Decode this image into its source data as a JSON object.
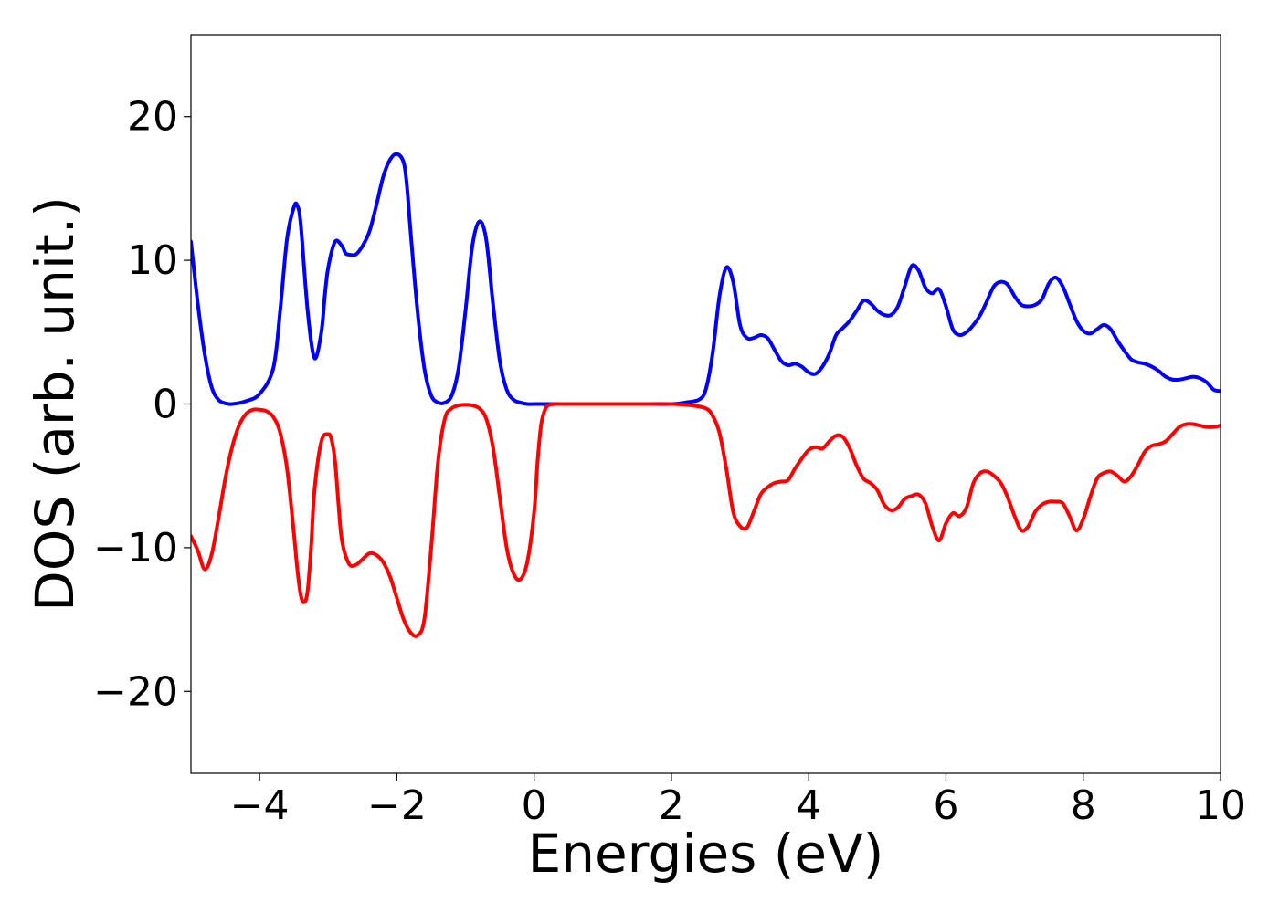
{
  "chart_data": {
    "type": "line",
    "title": "",
    "xlabel": "Energies (eV)",
    "ylabel": "DOS (arb. unit.)",
    "xlim": [
      -5,
      10
    ],
    "ylim": [
      -25.7,
      25.7
    ],
    "xticks": [
      -4,
      -2,
      0,
      2,
      4,
      6,
      8,
      10
    ],
    "yticks": [
      -20,
      -10,
      0,
      10,
      20
    ],
    "xtick_labels": [
      "−4",
      "−2",
      "0",
      "2",
      "4",
      "6",
      "8",
      "10"
    ],
    "ytick_labels": [
      "−20",
      "−10",
      "0",
      "10",
      "20"
    ],
    "grid": false,
    "legend": false,
    "series": [
      {
        "color": "#0000ff",
        "x": [
          -5.0,
          -4.9,
          -4.8,
          -4.7,
          -4.6,
          -4.5,
          -4.4,
          -4.2,
          -4.0,
          -3.8,
          -3.7,
          -3.6,
          -3.5,
          -3.45,
          -3.4,
          -3.3,
          -3.2,
          -3.1,
          -3.05,
          -3.0,
          -2.9,
          -2.8,
          -2.75,
          -2.7,
          -2.6,
          -2.5,
          -2.4,
          -2.3,
          -2.2,
          -2.1,
          -2.0,
          -1.9,
          -1.85,
          -1.8,
          -1.7,
          -1.6,
          -1.5,
          -1.4,
          -1.3,
          -1.2,
          -1.1,
          -1.0,
          -0.9,
          -0.8,
          -0.7,
          -0.6,
          -0.5,
          -0.4,
          -0.3,
          -0.2,
          -0.1,
          0.0,
          0.2,
          0.5,
          1.0,
          1.5,
          2.0,
          2.2,
          2.4,
          2.5,
          2.6,
          2.7,
          2.8,
          2.9,
          3.0,
          3.1,
          3.2,
          3.3,
          3.4,
          3.5,
          3.6,
          3.7,
          3.8,
          3.9,
          4.0,
          4.1,
          4.2,
          4.3,
          4.4,
          4.5,
          4.6,
          4.7,
          4.8,
          4.9,
          5.0,
          5.1,
          5.2,
          5.3,
          5.4,
          5.5,
          5.6,
          5.7,
          5.8,
          5.9,
          6.0,
          6.1,
          6.2,
          6.3,
          6.4,
          6.5,
          6.6,
          6.7,
          6.8,
          6.9,
          7.0,
          7.1,
          7.2,
          7.3,
          7.4,
          7.5,
          7.6,
          7.7,
          7.8,
          7.9,
          8.0,
          8.1,
          8.2,
          8.3,
          8.4,
          8.5,
          8.6,
          8.7,
          8.8,
          8.9,
          9.0,
          9.1,
          9.2,
          9.3,
          9.4,
          9.5,
          9.6,
          9.7,
          9.8,
          9.9,
          10.0
        ],
        "y": [
          11.3,
          7.0,
          3.5,
          1.2,
          0.3,
          0.05,
          0.0,
          0.2,
          0.7,
          2.5,
          6.5,
          11.5,
          13.7,
          13.8,
          12.5,
          6.5,
          3.2,
          5.0,
          7.5,
          9.5,
          11.3,
          11.0,
          10.5,
          10.4,
          10.4,
          11.0,
          12.0,
          13.8,
          15.8,
          17.0,
          17.4,
          16.8,
          15.0,
          12.0,
          6.5,
          2.5,
          0.6,
          0.1,
          0.1,
          0.6,
          2.5,
          6.5,
          11.0,
          12.7,
          11.5,
          7.0,
          3.0,
          1.0,
          0.3,
          0.1,
          0.0,
          0.0,
          0.0,
          0.0,
          0.0,
          0.0,
          0.0,
          0.1,
          0.3,
          1.0,
          3.5,
          7.5,
          9.5,
          8.5,
          5.5,
          4.6,
          4.6,
          4.8,
          4.6,
          3.8,
          3.0,
          2.7,
          2.8,
          2.6,
          2.2,
          2.1,
          2.6,
          3.5,
          4.8,
          5.3,
          5.8,
          6.5,
          7.2,
          7.0,
          6.5,
          6.2,
          6.2,
          6.8,
          8.2,
          9.6,
          9.3,
          8.1,
          7.7,
          8.0,
          6.8,
          5.2,
          4.8,
          5.0,
          5.5,
          6.2,
          7.2,
          8.2,
          8.5,
          8.3,
          7.5,
          6.9,
          6.8,
          6.9,
          7.3,
          8.4,
          8.8,
          8.2,
          7.0,
          5.8,
          5.1,
          4.9,
          5.2,
          5.5,
          5.2,
          4.4,
          3.7,
          3.1,
          2.9,
          2.8,
          2.6,
          2.3,
          1.9,
          1.7,
          1.7,
          1.8,
          1.9,
          1.8,
          1.5,
          1.0,
          0.9
        ]
      },
      {
        "color": "#ff0000",
        "x": [
          -5.0,
          -4.9,
          -4.8,
          -4.7,
          -4.6,
          -4.5,
          -4.4,
          -4.3,
          -4.2,
          -4.1,
          -4.0,
          -3.9,
          -3.8,
          -3.7,
          -3.6,
          -3.5,
          -3.45,
          -3.4,
          -3.35,
          -3.3,
          -3.25,
          -3.2,
          -3.1,
          -3.0,
          -2.95,
          -2.9,
          -2.85,
          -2.8,
          -2.7,
          -2.6,
          -2.5,
          -2.4,
          -2.3,
          -2.2,
          -2.1,
          -2.0,
          -1.9,
          -1.8,
          -1.7,
          -1.6,
          -1.5,
          -1.4,
          -1.3,
          -1.2,
          -1.1,
          -1.0,
          -0.9,
          -0.8,
          -0.7,
          -0.6,
          -0.5,
          -0.4,
          -0.3,
          -0.2,
          -0.1,
          0.0,
          0.05,
          0.1,
          0.15,
          0.2,
          0.3,
          0.4,
          0.5,
          0.6,
          0.8,
          1.0,
          1.5,
          2.0,
          2.3,
          2.5,
          2.6,
          2.7,
          2.8,
          2.9,
          3.0,
          3.1,
          3.2,
          3.3,
          3.4,
          3.5,
          3.6,
          3.7,
          3.8,
          3.9,
          4.0,
          4.1,
          4.2,
          4.3,
          4.4,
          4.5,
          4.6,
          4.7,
          4.8,
          4.9,
          5.0,
          5.1,
          5.2,
          5.3,
          5.4,
          5.5,
          5.6,
          5.7,
          5.8,
          5.9,
          6.0,
          6.1,
          6.2,
          6.3,
          6.4,
          6.5,
          6.6,
          6.7,
          6.8,
          6.9,
          7.0,
          7.1,
          7.2,
          7.3,
          7.4,
          7.5,
          7.6,
          7.7,
          7.8,
          7.9,
          8.0,
          8.1,
          8.2,
          8.3,
          8.4,
          8.5,
          8.6,
          8.7,
          8.8,
          8.9,
          9.0,
          9.1,
          9.2,
          9.3,
          9.4,
          9.5,
          9.6,
          9.7,
          9.8,
          9.9,
          10.0
        ],
        "y": [
          -9.2,
          -10.2,
          -11.5,
          -10.5,
          -8.0,
          -5.2,
          -3.0,
          -1.5,
          -0.7,
          -0.4,
          -0.4,
          -0.5,
          -0.9,
          -2.0,
          -4.5,
          -9.0,
          -11.5,
          -13.3,
          -13.8,
          -13.0,
          -10.0,
          -6.0,
          -2.6,
          -2.1,
          -2.5,
          -4.0,
          -7.0,
          -9.5,
          -11.1,
          -11.2,
          -10.8,
          -10.4,
          -10.5,
          -11.0,
          -12.0,
          -13.5,
          -15.0,
          -15.9,
          -16.1,
          -15.0,
          -10.0,
          -4.0,
          -1.0,
          -0.3,
          -0.1,
          -0.05,
          -0.1,
          -0.3,
          -1.0,
          -3.0,
          -6.5,
          -10.0,
          -11.8,
          -12.2,
          -11.0,
          -7.5,
          -4.0,
          -1.5,
          -0.5,
          -0.1,
          0.0,
          0.0,
          0.0,
          0.0,
          0.0,
          0.0,
          0.0,
          0.0,
          -0.1,
          -0.3,
          -0.8,
          -2.0,
          -4.5,
          -7.5,
          -8.5,
          -8.6,
          -7.5,
          -6.3,
          -5.8,
          -5.5,
          -5.4,
          -5.3,
          -4.5,
          -3.8,
          -3.2,
          -3.0,
          -3.1,
          -2.6,
          -2.2,
          -2.3,
          -3.1,
          -4.3,
          -5.2,
          -5.5,
          -6.0,
          -7.0,
          -7.4,
          -7.2,
          -6.6,
          -6.4,
          -6.3,
          -6.9,
          -8.5,
          -9.5,
          -8.3,
          -7.6,
          -7.8,
          -7.2,
          -5.5,
          -4.8,
          -4.7,
          -5.0,
          -5.5,
          -6.5,
          -7.8,
          -8.8,
          -8.5,
          -7.5,
          -7.0,
          -6.8,
          -6.8,
          -6.9,
          -7.8,
          -8.8,
          -8.0,
          -6.5,
          -5.2,
          -4.8,
          -4.7,
          -5.0,
          -5.4,
          -5.0,
          -4.2,
          -3.3,
          -2.9,
          -2.8,
          -2.6,
          -2.1,
          -1.6,
          -1.4,
          -1.4,
          -1.5,
          -1.6,
          -1.6,
          -1.5
        ]
      }
    ]
  }
}
